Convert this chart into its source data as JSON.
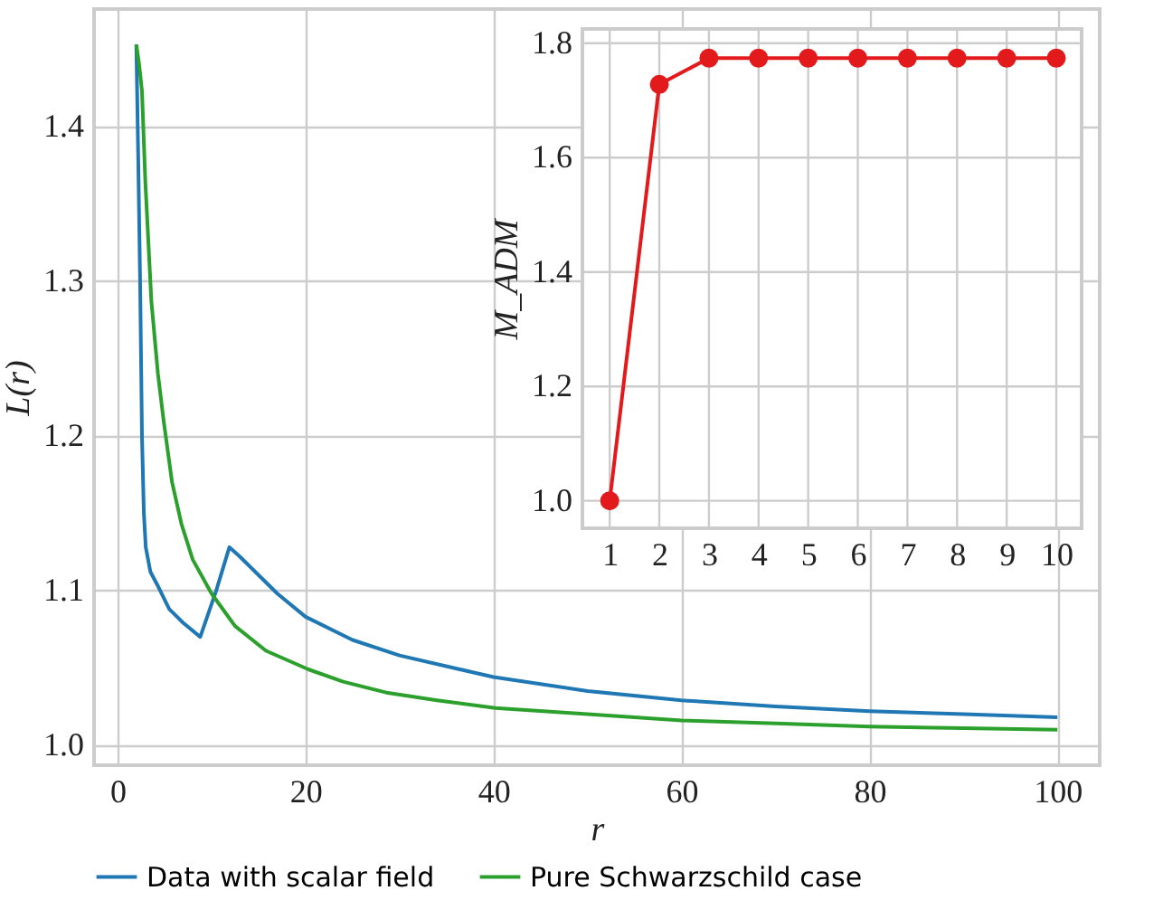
{
  "chart_data": [
    {
      "type": "line",
      "xlabel": "r",
      "ylabel": "L(r)",
      "xlim": [
        -2.5,
        104.5
      ],
      "ylim": [
        0.987,
        1.476
      ],
      "xticks": [
        0,
        20,
        40,
        60,
        80,
        100
      ],
      "yticks": [
        {
          "value": 1,
          "label": "1.0"
        },
        1.1,
        1.2,
        1.3,
        1.4
      ],
      "grid": true,
      "legend": "bottom",
      "line_style": "solid",
      "series": [
        {
          "name": "Data with scalar field",
          "color": "#1f77b4",
          "x": [
            2.0,
            2.2,
            2.4,
            2.6,
            2.8,
            3.0,
            3.5,
            4.2,
            5.5,
            7.0,
            8.8,
            10.5,
            11.9,
            13.0,
            15.0,
            17.0,
            20.0,
            25.0,
            30.0,
            40.0,
            50.0,
            60.0,
            70.0,
            80.0,
            90.0,
            100.0
          ],
          "values": [
            1.453,
            1.38,
            1.3,
            1.2,
            1.15,
            1.128,
            1.112,
            1.104,
            1.088,
            1.079,
            1.07,
            1.1,
            1.128,
            1.122,
            1.11,
            1.098,
            1.083,
            1.068,
            1.058,
            1.044,
            1.035,
            1.029,
            1.025,
            1.022,
            1.02,
            1.018
          ]
        },
        {
          "name": "Pure Schwarzschild case",
          "color": "#2ca02c",
          "x": [
            2.0,
            2.3,
            2.6,
            2.95,
            3.6,
            4.3,
            4.9,
            5.8,
            6.8,
            8.0,
            10.0,
            12.5,
            15.8,
            20.3,
            24.0,
            28.6,
            34.0,
            40.2,
            50.0,
            60.0,
            70.0,
            80.0,
            90.0,
            100.0
          ],
          "values": [
            1.453,
            1.44,
            1.423,
            1.365,
            1.287,
            1.24,
            1.21,
            1.17,
            1.143,
            1.12,
            1.098,
            1.077,
            1.061,
            1.049,
            1.041,
            1.034,
            1.029,
            1.024,
            1.02,
            1.016,
            1.014,
            1.012,
            1.011,
            1.01
          ]
        }
      ]
    },
    {
      "type": "line",
      "ylabel": "M_ADM",
      "xlim": [
        0.45,
        10.51
      ],
      "ylim": [
        0.952,
        1.825
      ],
      "xticks": [
        1,
        2,
        3,
        4,
        5,
        6,
        7,
        8,
        9,
        10
      ],
      "yticks": [
        {
          "value": 1,
          "label": "1.0"
        },
        1.2,
        1.4,
        1.6,
        1.8
      ],
      "grid": true,
      "marker": "circle",
      "line_style": "solid",
      "series": [
        {
          "color": "#e31a1c",
          "x": [
            1,
            2,
            3,
            4,
            5,
            6,
            7,
            8,
            9,
            10
          ],
          "values": [
            1.0,
            1.728,
            1.774,
            1.774,
            1.774,
            1.774,
            1.774,
            1.774,
            1.774,
            1.774
          ]
        }
      ]
    }
  ]
}
